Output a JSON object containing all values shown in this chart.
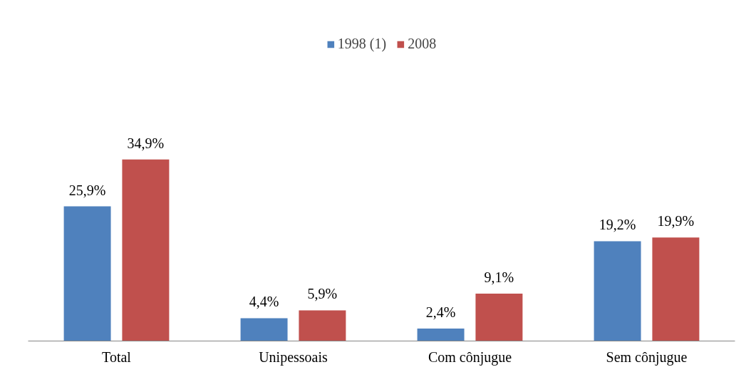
{
  "chart_data": {
    "type": "bar",
    "categories": [
      "Total",
      "Unipessoais",
      "Com cônjugue",
      "Sem cônjugue"
    ],
    "series": [
      {
        "name": "1998 (1)",
        "color": "#4f81bd",
        "values": [
          25.9,
          4.4,
          2.4,
          19.2
        ],
        "value_labels": [
          "25,9%",
          "4,4%",
          "2,4%",
          "19,2%"
        ]
      },
      {
        "name": "2008",
        "color": "#c0504d",
        "values": [
          34.9,
          5.9,
          9.1,
          19.9
        ],
        "value_labels": [
          "34,9%",
          "5,9%",
          "9,1%",
          "19,9%"
        ]
      }
    ],
    "legend": "top",
    "grid": false
  }
}
